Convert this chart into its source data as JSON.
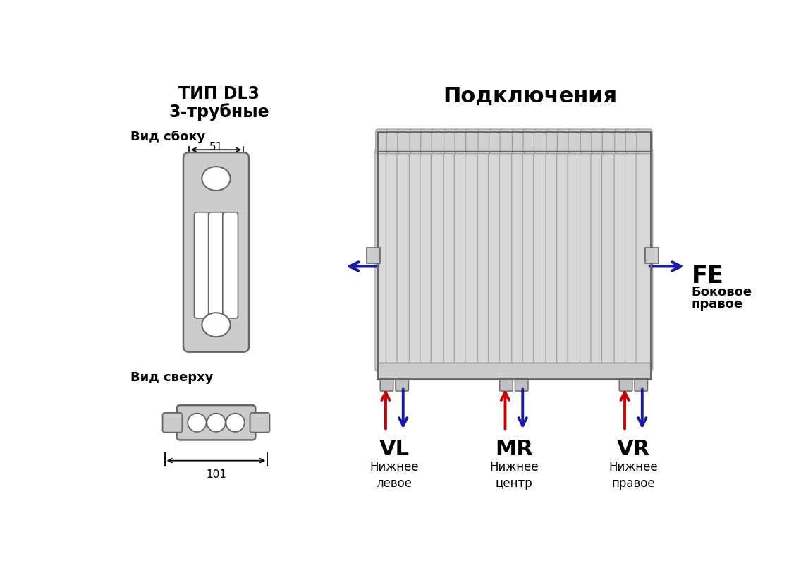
{
  "bg_color": "#ffffff",
  "title_left_line1": "ТИП DL3",
  "title_left_line2": "3-трубные",
  "title_right": "Подключения",
  "label_side": "Вид сбоку",
  "label_top": "Вид сверху",
  "dim_width_side": "51",
  "dim_width_top": "101",
  "fe_label": "FE",
  "fe_sublabel": "Боковое\nправое",
  "vl_label": "VL",
  "vl_sublabel": "Нижнее\nлевое",
  "mr_label": "MR",
  "mr_sublabel": "Нижнее\nцентр",
  "vr_label": "VR",
  "vr_sublabel": "Нижнее\nправое",
  "radiator_color": "#cccccc",
  "radiator_dark": "#aaaaaa",
  "border_color": "#666666",
  "red_arrow": "#cc0000",
  "blue_arrow": "#1a1aaa"
}
